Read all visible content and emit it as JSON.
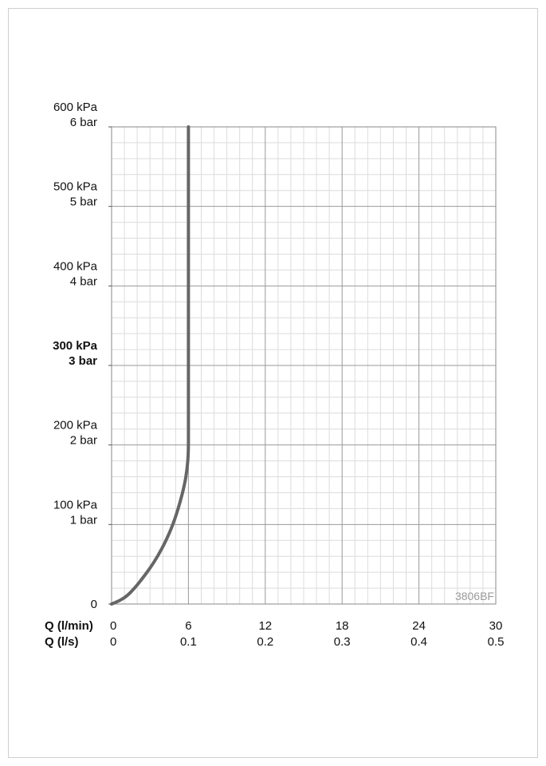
{
  "chart_data": {
    "type": "line",
    "title": "",
    "code_label": "3806BF",
    "x_axis": {
      "range": [
        0,
        30
      ],
      "rows": [
        {
          "label": "Q (l/min)",
          "ticks": [
            "0",
            "6",
            "12",
            "18",
            "24",
            "30"
          ]
        },
        {
          "label": "Q (l/s)",
          "ticks": [
            "0",
            "0.1",
            "0.2",
            "0.3",
            "0.4",
            "0.5"
          ]
        }
      ]
    },
    "y_axis": {
      "range": [
        0,
        600
      ],
      "unit": "kPa",
      "ticks": [
        {
          "value": 0,
          "lines": [
            "0"
          ],
          "bold": false
        },
        {
          "value": 100,
          "lines": [
            "100 kPa",
            "1 bar"
          ],
          "bold": false
        },
        {
          "value": 200,
          "lines": [
            "200 kPa",
            "2 bar"
          ],
          "bold": false
        },
        {
          "value": 300,
          "lines": [
            "300 kPa",
            "3 bar"
          ],
          "bold": true
        },
        {
          "value": 400,
          "lines": [
            "400 kPa",
            "4 bar"
          ],
          "bold": false
        },
        {
          "value": 500,
          "lines": [
            "500 kPa",
            "5 bar"
          ],
          "bold": false
        },
        {
          "value": 600,
          "lines": [
            "600 kPa",
            "6 bar"
          ],
          "bold": false
        }
      ]
    },
    "grid": {
      "major_x_step": 6,
      "minor_x_step": 1,
      "major_y_step": 100,
      "minor_y_step": 20
    },
    "series": [
      {
        "color": "#666666",
        "points": [
          [
            0,
            0
          ],
          [
            0.6,
            4
          ],
          [
            1.2,
            10
          ],
          [
            1.8,
            20
          ],
          [
            2.4,
            32
          ],
          [
            3.0,
            45
          ],
          [
            3.6,
            60
          ],
          [
            4.2,
            78
          ],
          [
            4.8,
            100
          ],
          [
            5.3,
            125
          ],
          [
            5.7,
            150
          ],
          [
            5.9,
            170
          ],
          [
            6.0,
            190
          ],
          [
            6.0,
            220
          ],
          [
            6.0,
            300
          ],
          [
            6.0,
            400
          ],
          [
            6.0,
            500
          ],
          [
            6.0,
            600
          ]
        ]
      }
    ]
  }
}
